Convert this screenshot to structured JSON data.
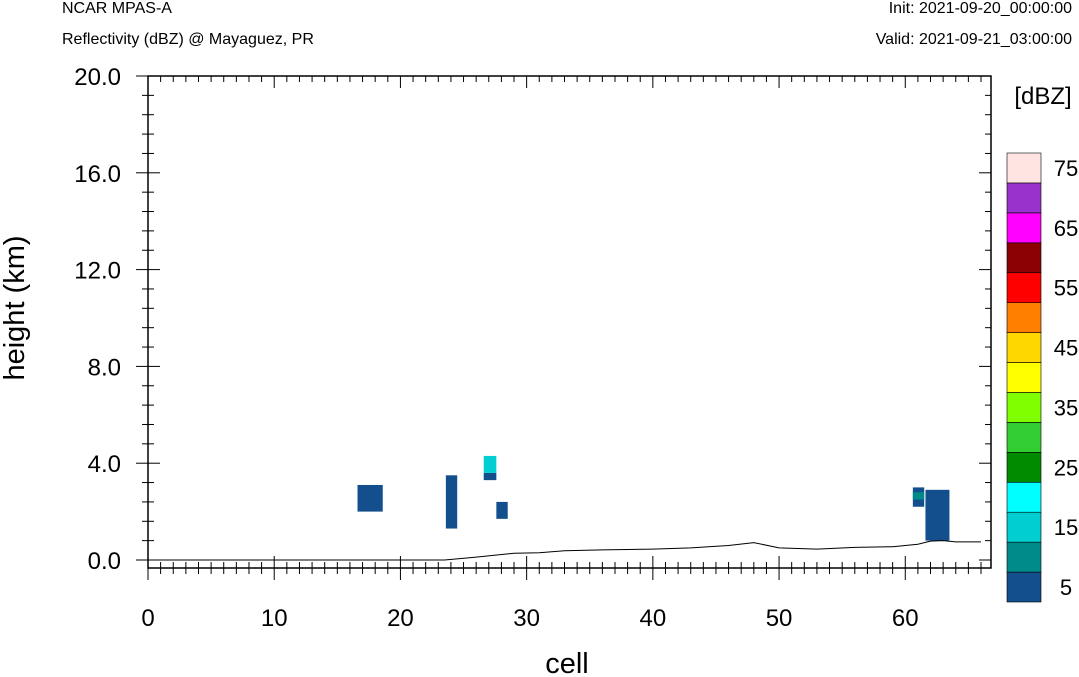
{
  "header": {
    "left_line1": "NCAR MPAS-A",
    "left_line2": "Reflectivity (dBZ) @ Mayaguez, PR",
    "right_line1": "Init: 2021-09-20_00:00:00",
    "right_line2": "Valid: 2021-09-21_03:00:00"
  },
  "chart_data": {
    "type": "heatmap",
    "xlabel": "cell",
    "ylabel": "height (km)",
    "xlim": [
      0,
      66
    ],
    "ylim": [
      0,
      20
    ],
    "x_ticks": [
      0,
      10,
      20,
      30,
      40,
      50,
      60
    ],
    "x_tick_labels": [
      "0",
      "10",
      "20",
      "30",
      "40",
      "50",
      "60"
    ],
    "y_ticks": [
      0,
      4,
      8,
      12,
      16,
      20
    ],
    "y_tick_labels": [
      "0.0",
      "4.0",
      "8.0",
      "12.0",
      "16.0",
      "20.0"
    ],
    "colorbar": {
      "title": "[dBZ]",
      "levels": [
        5,
        10,
        15,
        20,
        25,
        30,
        35,
        40,
        45,
        50,
        55,
        60,
        65,
        70,
        75
      ],
      "tick_labels": [
        "5",
        "15",
        "25",
        "35",
        "45",
        "55",
        "65",
        "75"
      ],
      "colors": [
        "#134f8d",
        "#008b8b",
        "#00ced1",
        "#00ffff",
        "#008b00",
        "#32cd32",
        "#7fff00",
        "#ffff00",
        "#ffd700",
        "#ff7f00",
        "#ff0000",
        "#8b0000",
        "#ff00ff",
        "#9932cc",
        "#ffe4e1"
      ]
    },
    "cells": [
      {
        "x0": 16.6,
        "x1": 18.6,
        "y0": 2.0,
        "y1": 3.1,
        "dbz": 5
      },
      {
        "x0": 23.6,
        "x1": 24.5,
        "y0": 1.3,
        "y1": 3.5,
        "dbz": 5
      },
      {
        "x0": 26.6,
        "x1": 27.6,
        "y0": 3.3,
        "y1": 3.6,
        "dbz": 5
      },
      {
        "x0": 26.6,
        "x1": 27.6,
        "y0": 3.6,
        "y1": 4.3,
        "dbz": 15
      },
      {
        "x0": 27.6,
        "x1": 28.5,
        "y0": 1.7,
        "y1": 2.4,
        "dbz": 5
      },
      {
        "x0": 60.6,
        "x1": 61.5,
        "y0": 2.2,
        "y1": 3.0,
        "dbz": 5
      },
      {
        "x0": 60.6,
        "x1": 61.5,
        "y0": 2.5,
        "y1": 2.8,
        "dbz": 10
      },
      {
        "x0": 61.6,
        "x1": 63.5,
        "y0": 0.8,
        "y1": 2.9,
        "dbz": 5
      }
    ],
    "terrain": {
      "x": [
        0,
        10,
        20,
        23.5,
        26,
        29,
        31,
        33,
        36,
        40,
        43,
        46,
        48,
        50,
        53,
        56,
        59,
        61,
        62,
        63,
        64,
        66
      ],
      "y": [
        0.0,
        0.0,
        0.0,
        0.0,
        0.12,
        0.28,
        0.3,
        0.38,
        0.42,
        0.45,
        0.5,
        0.6,
        0.72,
        0.5,
        0.45,
        0.52,
        0.55,
        0.65,
        0.78,
        0.8,
        0.75,
        0.75
      ]
    }
  }
}
